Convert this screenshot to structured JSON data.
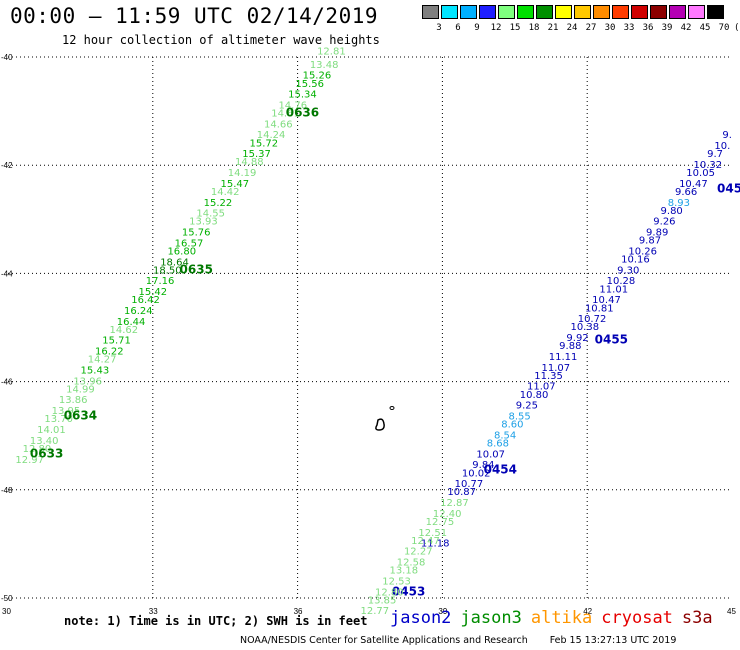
{
  "header": {
    "title": "00:00 – 11:59 UTC 02/14/2019",
    "subtitle": "12 hour collection of altimeter wave heights"
  },
  "color_scale": {
    "labels": [
      "3",
      "6",
      "9",
      "12",
      "15",
      "18",
      "21",
      "24",
      "27",
      "30",
      "33",
      "36",
      "39",
      "42",
      "45",
      "70",
      "(ft)"
    ],
    "colors": [
      "#7f7f7f",
      "#00e5ff",
      "#00b0ff",
      "#1e1eff",
      "#7fff7f",
      "#00e000",
      "#009000",
      "#ffff00",
      "#ffc800",
      "#ff8c00",
      "#ff3c00",
      "#d00000",
      "#8c0000",
      "#b400b4",
      "#ff78ff",
      "#000000"
    ]
  },
  "axes": {
    "lat_labels": [
      "-40",
      "-42",
      "-44",
      "-46",
      "-48",
      "-50"
    ],
    "lon_labels": [
      "30",
      "33",
      "36",
      "39",
      "42",
      "45"
    ]
  },
  "tracks": {
    "jason3": {
      "color": "#007800",
      "times": [
        {
          "label": "0636",
          "lat": -41.1,
          "lon": 36.1
        },
        {
          "label": "0635",
          "lat": -44.0,
          "lon": 33.9
        },
        {
          "label": "0634",
          "lat": -46.7,
          "lon": 31.5
        },
        {
          "label": "0633",
          "lat": -47.4,
          "lon": 30.8
        }
      ],
      "points": [
        {
          "v": "12.81",
          "lat": -39.95,
          "lon": 36.7,
          "c": "#7fdc7f"
        },
        {
          "v": "13.48",
          "lat": -40.2,
          "lon": 36.55,
          "c": "#7fdc7f"
        },
        {
          "v": "15.26",
          "lat": -40.4,
          "lon": 36.4,
          "c": "#00b000"
        },
        {
          "v": "15.56",
          "lat": -40.55,
          "lon": 36.25,
          "c": "#00b000"
        },
        {
          "v": "15.34",
          "lat": -40.75,
          "lon": 36.1,
          "c": "#00b000"
        },
        {
          "v": "14.76",
          "lat": -40.95,
          "lon": 35.9,
          "c": "#7fdc7f"
        },
        {
          "v": "14.61",
          "lat": -41.1,
          "lon": 35.75,
          "c": "#7fdc7f"
        },
        {
          "v": "14.66",
          "lat": -41.3,
          "lon": 35.6,
          "c": "#7fdc7f"
        },
        {
          "v": "14.24",
          "lat": -41.5,
          "lon": 35.45,
          "c": "#7fdc7f"
        },
        {
          "v": "15.72",
          "lat": -41.65,
          "lon": 35.3,
          "c": "#00b000"
        },
        {
          "v": "15.37",
          "lat": -41.85,
          "lon": 35.15,
          "c": "#00b000"
        },
        {
          "v": "14.88",
          "lat": -42.0,
          "lon": 35.0,
          "c": "#7fdc7f"
        },
        {
          "v": "14.19",
          "lat": -42.2,
          "lon": 34.85,
          "c": "#7fdc7f"
        },
        {
          "v": "15.47",
          "lat": -42.4,
          "lon": 34.7,
          "c": "#00b000"
        },
        {
          "v": "14.42",
          "lat": -42.55,
          "lon": 34.5,
          "c": "#7fdc7f"
        },
        {
          "v": "15.22",
          "lat": -42.75,
          "lon": 34.35,
          "c": "#00b000"
        },
        {
          "v": "14.55",
          "lat": -42.95,
          "lon": 34.2,
          "c": "#7fdc7f"
        },
        {
          "v": "13.93",
          "lat": -43.1,
          "lon": 34.05,
          "c": "#7fdc7f"
        },
        {
          "v": "15.76",
          "lat": -43.3,
          "lon": 33.9,
          "c": "#00b000"
        },
        {
          "v": "16.57",
          "lat": -43.5,
          "lon": 33.75,
          "c": "#00b000"
        },
        {
          "v": "16.80",
          "lat": -43.65,
          "lon": 33.6,
          "c": "#00b000"
        },
        {
          "v": "18.64",
          "lat": -43.85,
          "lon": 33.45,
          "c": "#007800"
        },
        {
          "v": "18.50",
          "lat": -44.0,
          "lon": 33.3,
          "c": "#007800"
        },
        {
          "v": "17.16",
          "lat": -44.2,
          "lon": 33.15,
          "c": "#00b000"
        },
        {
          "v": "15.42",
          "lat": -44.4,
          "lon": 33.0,
          "c": "#00b000"
        },
        {
          "v": "16.42",
          "lat": -44.55,
          "lon": 32.85,
          "c": "#00b000"
        },
        {
          "v": "16.24",
          "lat": -44.75,
          "lon": 32.7,
          "c": "#00b000"
        },
        {
          "v": "16.44",
          "lat": -44.95,
          "lon": 32.55,
          "c": "#00b000"
        },
        {
          "v": "14.62",
          "lat": -45.1,
          "lon": 32.4,
          "c": "#7fdc7f"
        },
        {
          "v": "15.71",
          "lat": -45.3,
          "lon": 32.25,
          "c": "#00b000"
        },
        {
          "v": "16.22",
          "lat": -45.5,
          "lon": 32.1,
          "c": "#00b000"
        },
        {
          "v": "14.27",
          "lat": -45.65,
          "lon": 31.95,
          "c": "#7fdc7f"
        },
        {
          "v": "15.43",
          "lat": -45.85,
          "lon": 31.8,
          "c": "#00b000"
        },
        {
          "v": "13.96",
          "lat": -46.05,
          "lon": 31.65,
          "c": "#7fdc7f"
        },
        {
          "v": "14.99",
          "lat": -46.2,
          "lon": 31.5,
          "c": "#7fdc7f"
        },
        {
          "v": "13.86",
          "lat": -46.4,
          "lon": 31.35,
          "c": "#7fdc7f"
        },
        {
          "v": "13.95",
          "lat": -46.6,
          "lon": 31.2,
          "c": "#7fdc7f"
        },
        {
          "v": "13.70",
          "lat": -46.75,
          "lon": 31.05,
          "c": "#7fdc7f"
        },
        {
          "v": "14.01",
          "lat": -46.95,
          "lon": 30.9,
          "c": "#7fdc7f"
        },
        {
          "v": "13.40",
          "lat": -47.15,
          "lon": 30.75,
          "c": "#7fdc7f"
        },
        {
          "v": "12.80",
          "lat": -47.3,
          "lon": 30.6,
          "c": "#7fdc7f"
        },
        {
          "v": "12.97",
          "lat": -47.5,
          "lon": 30.45,
          "c": "#7fdc7f"
        }
      ]
    },
    "jason2": {
      "color": "#0000b4",
      "times": [
        {
          "label": "045",
          "lat": -42.5,
          "lon": 44.95
        },
        {
          "label": "0455",
          "lat": -45.3,
          "lon": 42.5
        },
        {
          "label": "0454",
          "lat": -47.7,
          "lon": 40.2
        },
        {
          "label": "0453",
          "lat": -49.95,
          "lon": 38.3
        }
      ],
      "points": [
        {
          "v": "9.",
          "lat": -41.5,
          "lon": 44.9,
          "c": "#0000b4"
        },
        {
          "v": "10.",
          "lat": -41.7,
          "lon": 44.8,
          "c": "#0000b4"
        },
        {
          "v": "9.7",
          "lat": -41.85,
          "lon": 44.65,
          "c": "#0000b4"
        },
        {
          "v": "10.32",
          "lat": -42.05,
          "lon": 44.5,
          "c": "#0000b4"
        },
        {
          "v": "10.05",
          "lat": -42.2,
          "lon": 44.35,
          "c": "#0000b4"
        },
        {
          "v": "10.47",
          "lat": -42.4,
          "lon": 44.2,
          "c": "#0000b4"
        },
        {
          "v": "9.66",
          "lat": -42.55,
          "lon": 44.05,
          "c": "#0000b4"
        },
        {
          "v": "8.93",
          "lat": -42.75,
          "lon": 43.9,
          "c": "#1ea0e6"
        },
        {
          "v": "9.80",
          "lat": -42.9,
          "lon": 43.75,
          "c": "#0000b4"
        },
        {
          "v": "9.26",
          "lat": -43.1,
          "lon": 43.6,
          "c": "#0000b4"
        },
        {
          "v": "9.89",
          "lat": -43.3,
          "lon": 43.45,
          "c": "#0000b4"
        },
        {
          "v": "9.87",
          "lat": -43.45,
          "lon": 43.3,
          "c": "#0000b4"
        },
        {
          "v": "10.26",
          "lat": -43.65,
          "lon": 43.15,
          "c": "#0000b4"
        },
        {
          "v": "10.16",
          "lat": -43.8,
          "lon": 43.0,
          "c": "#0000b4"
        },
        {
          "v": "9.30",
          "lat": -44.0,
          "lon": 42.85,
          "c": "#0000b4"
        },
        {
          "v": "10.28",
          "lat": -44.2,
          "lon": 42.7,
          "c": "#0000b4"
        },
        {
          "v": "11.01",
          "lat": -44.35,
          "lon": 42.55,
          "c": "#0000b4"
        },
        {
          "v": "10.47",
          "lat": -44.55,
          "lon": 42.4,
          "c": "#0000b4"
        },
        {
          "v": "10.81",
          "lat": -44.7,
          "lon": 42.25,
          "c": "#0000b4"
        },
        {
          "v": "10.72",
          "lat": -44.9,
          "lon": 42.1,
          "c": "#0000b4"
        },
        {
          "v": "10.38",
          "lat": -45.05,
          "lon": 41.95,
          "c": "#0000b4"
        },
        {
          "v": "9.92",
          "lat": -45.25,
          "lon": 41.8,
          "c": "#0000b4"
        },
        {
          "v": "9.88",
          "lat": -45.4,
          "lon": 41.65,
          "c": "#0000b4"
        },
        {
          "v": "11.11",
          "lat": -45.6,
          "lon": 41.5,
          "c": "#0000b4"
        },
        {
          "v": "11.07",
          "lat": -45.8,
          "lon": 41.35,
          "c": "#0000b4"
        },
        {
          "v": "11.35",
          "lat": -45.95,
          "lon": 41.2,
          "c": "#0000b4"
        },
        {
          "v": "11.07",
          "lat": -46.15,
          "lon": 41.05,
          "c": "#0000b4"
        },
        {
          "v": "10.80",
          "lat": -46.3,
          "lon": 40.9,
          "c": "#0000b4"
        },
        {
          "v": "9.25",
          "lat": -46.5,
          "lon": 40.75,
          "c": "#0000b4"
        },
        {
          "v": "8.55",
          "lat": -46.7,
          "lon": 40.6,
          "c": "#1ea0e6"
        },
        {
          "v": "8.60",
          "lat": -46.85,
          "lon": 40.45,
          "c": "#1ea0e6"
        },
        {
          "v": "8.54",
          "lat": -47.05,
          "lon": 40.3,
          "c": "#1ea0e6"
        },
        {
          "v": "8.68",
          "lat": -47.2,
          "lon": 40.15,
          "c": "#1ea0e6"
        },
        {
          "v": "10.07",
          "lat": -47.4,
          "lon": 40.0,
          "c": "#0000b4"
        },
        {
          "v": "9.84",
          "lat": -47.6,
          "lon": 39.85,
          "c": "#0000b4"
        },
        {
          "v": "10.02",
          "lat": -47.75,
          "lon": 39.7,
          "c": "#0000b4"
        },
        {
          "v": "10.77",
          "lat": -47.95,
          "lon": 39.55,
          "c": "#0000b4"
        },
        {
          "v": "10.87",
          "lat": -48.1,
          "lon": 39.4,
          "c": "#0000b4"
        },
        {
          "v": "11.18",
          "lat": -49.05,
          "lon": 38.85,
          "c": "#0000b4"
        }
      ]
    },
    "jason3_south": {
      "color": "#007800",
      "points": [
        {
          "v": "12.87",
          "lat": -48.3,
          "lon": 39.25,
          "c": "#7fdc7f"
        },
        {
          "v": "12.40",
          "lat": -48.5,
          "lon": 39.1,
          "c": "#7fdc7f"
        },
        {
          "v": "12.75",
          "lat": -48.65,
          "lon": 38.95,
          "c": "#7fdc7f"
        },
        {
          "v": "12.51",
          "lat": -48.85,
          "lon": 38.8,
          "c": "#7fdc7f"
        },
        {
          "v": "12.47",
          "lat": -49.0,
          "lon": 38.65,
          "c": "#7fdc7f"
        },
        {
          "v": "12.27",
          "lat": -49.2,
          "lon": 38.5,
          "c": "#7fdc7f"
        },
        {
          "v": "12.58",
          "lat": -49.4,
          "lon": 38.35,
          "c": "#7fdc7f"
        },
        {
          "v": "13.18",
          "lat": -49.55,
          "lon": 38.2,
          "c": "#7fdc7f"
        },
        {
          "v": "12.53",
          "lat": -49.75,
          "lon": 38.05,
          "c": "#7fdc7f"
        },
        {
          "v": "12.80",
          "lat": -49.95,
          "lon": 37.9,
          "c": "#7fdc7f"
        },
        {
          "v": "13.85",
          "lat": -50.1,
          "lon": 37.75,
          "c": "#7fdc7f"
        },
        {
          "v": "12.77",
          "lat": -50.3,
          "lon": 37.6,
          "c": "#7fdc7f"
        }
      ]
    }
  },
  "footer": {
    "note": "note:  1) Time is in UTC;  2) SWH is in feet",
    "satellites": [
      {
        "name": "jason2",
        "color": "#0000c8"
      },
      {
        "name": "jason3",
        "color": "#008c00"
      },
      {
        "name": "altika",
        "color": "#ff9600"
      },
      {
        "name": "cryosat",
        "color": "#e60000"
      },
      {
        "name": "s3a",
        "color": "#8c0000"
      }
    ],
    "credit": "NOAA/NESDIS Center for Satellite Applications and Research",
    "timestamp": "Feb 15 13:27:13 UTC 2019"
  }
}
